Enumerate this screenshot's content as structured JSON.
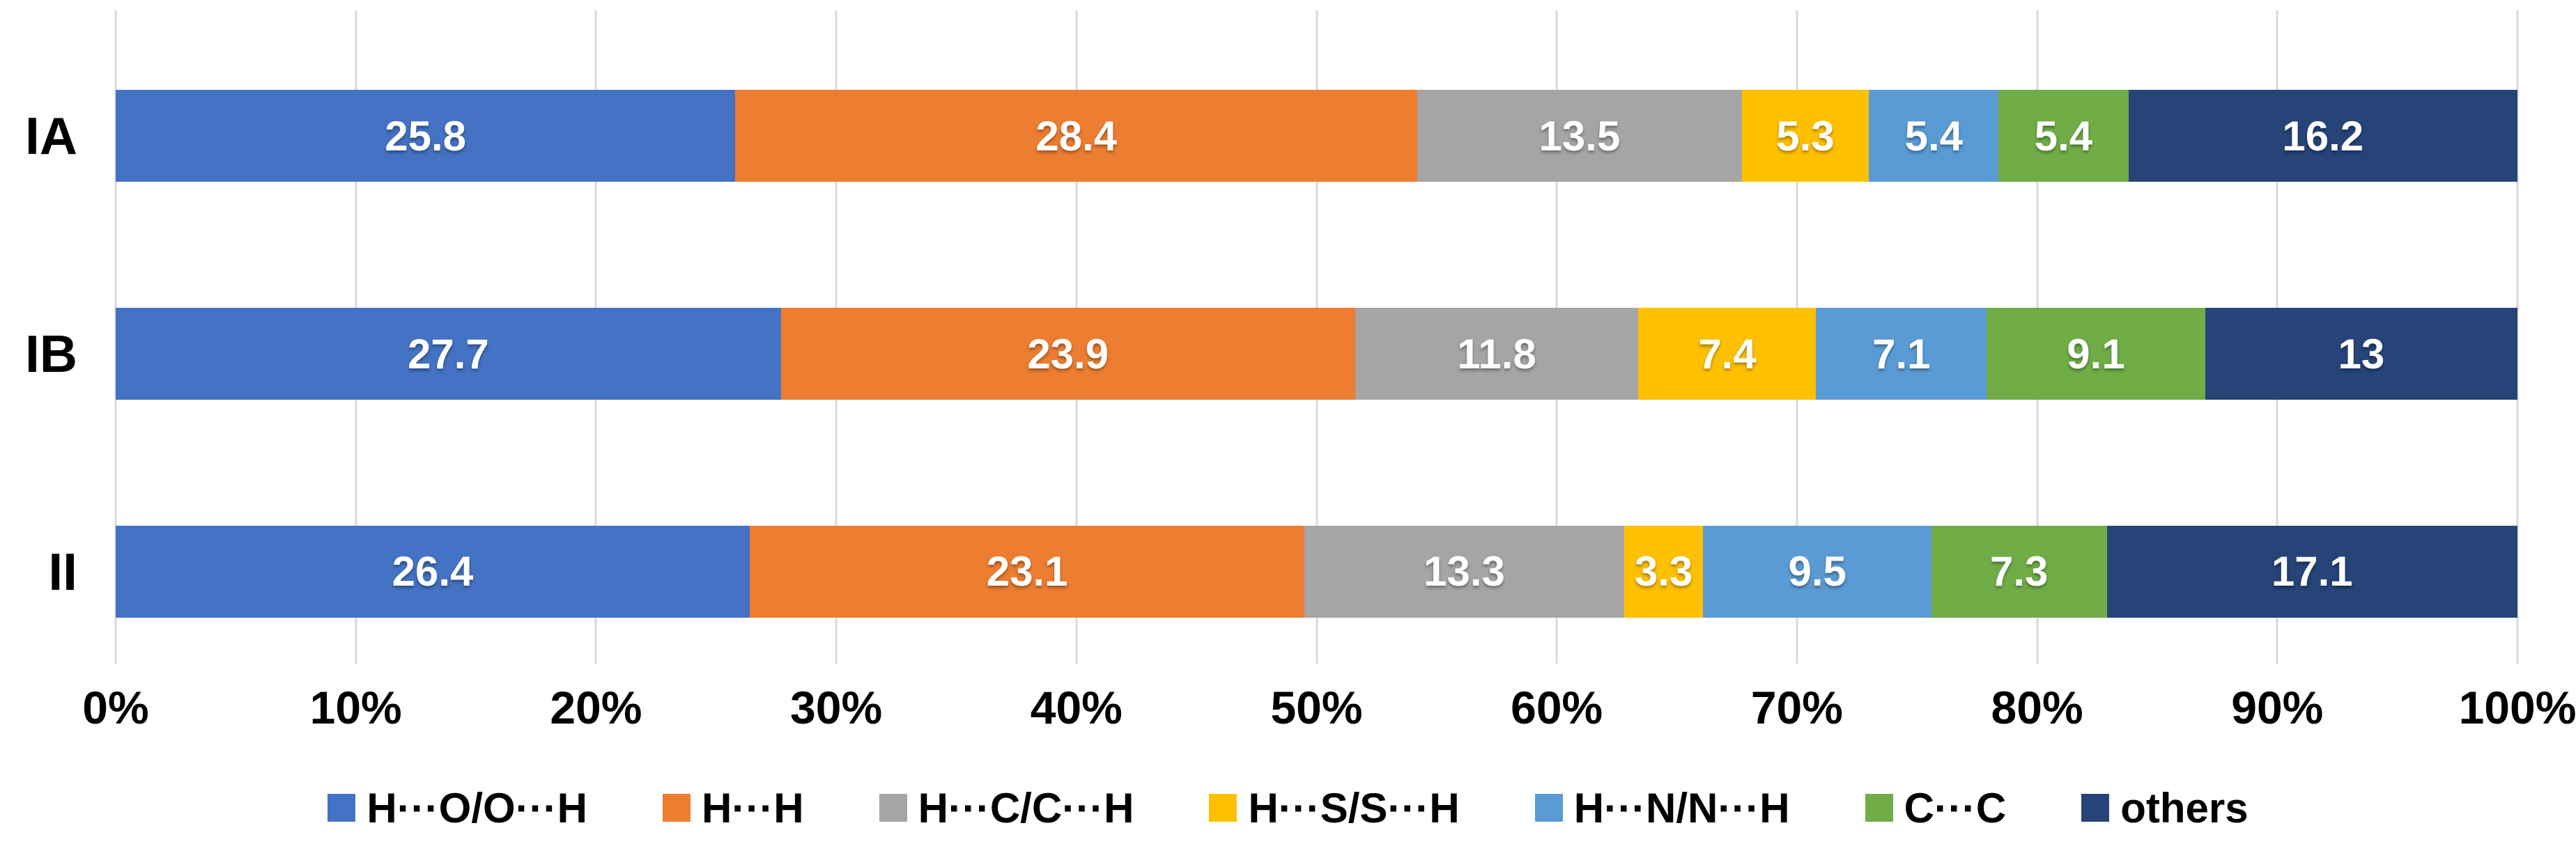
{
  "chart_data": {
    "type": "bar",
    "orientation": "horizontal",
    "stacked": true,
    "title": "",
    "xlabel": "",
    "ylabel": "",
    "categories": [
      "IA",
      "IB",
      "II"
    ],
    "series": [
      {
        "name": "H···O/O···H",
        "color": "#4472C4",
        "values": [
          25.8,
          27.7,
          26.4
        ],
        "labels": [
          "25.8",
          "27.7",
          "26.4"
        ]
      },
      {
        "name": "H···H",
        "color": "#ED7D31",
        "values": [
          28.4,
          23.9,
          23.1
        ],
        "labels": [
          "28.4",
          "23.9",
          "23.1"
        ]
      },
      {
        "name": "H···C/C···H",
        "color": "#A5A5A5",
        "values": [
          13.5,
          11.8,
          13.3
        ],
        "labels": [
          "13.5",
          "11.8",
          "13.3"
        ]
      },
      {
        "name": "H···S/S···H",
        "color": "#FFC000",
        "values": [
          5.3,
          7.4,
          3.3
        ],
        "labels": [
          "5.3",
          "7.4",
          "3.3"
        ]
      },
      {
        "name": "H···N/N···H",
        "color": "#5B9BD5",
        "values": [
          5.4,
          7.1,
          9.5
        ],
        "labels": [
          "5.4",
          "7.1",
          "9.5"
        ]
      },
      {
        "name": "C···C",
        "color": "#70AD47",
        "values": [
          5.4,
          9.1,
          7.3
        ],
        "labels": [
          "5.4",
          "9.1",
          "7.3"
        ]
      },
      {
        "name": "others",
        "color": "#264478",
        "values": [
          16.2,
          13,
          17.1
        ],
        "labels": [
          "16.2",
          "13",
          "17.1"
        ]
      }
    ],
    "x_axis": {
      "min": 0,
      "max": 100,
      "ticks": [
        "0%",
        "10%",
        "20%",
        "30%",
        "40%",
        "50%",
        "60%",
        "70%",
        "80%",
        "90%",
        "100%"
      ]
    },
    "grid": true,
    "gridline_color": "#D9D9D9",
    "value_label_color": "#FFFFFF",
    "legend_position": "bottom"
  }
}
